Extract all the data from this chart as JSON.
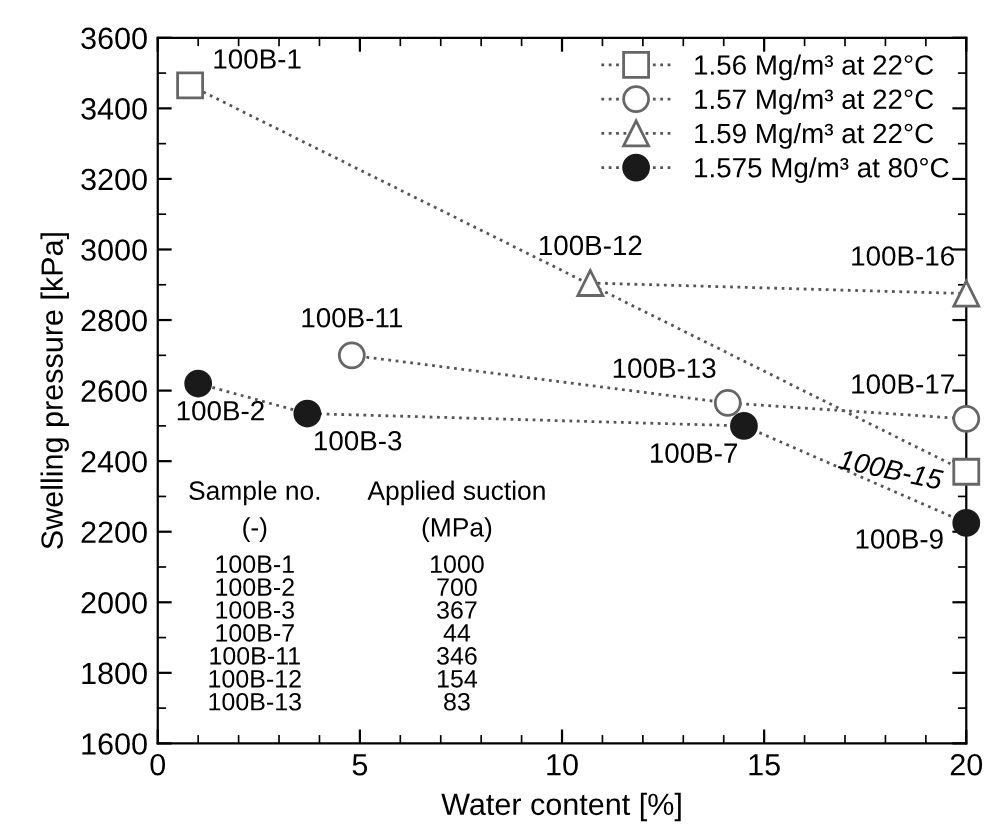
{
  "chart_data": {
    "type": "line",
    "xlabel": "Water content [%]",
    "ylabel": "Swelling pressure [kPa]",
    "xlim": [
      0,
      20
    ],
    "xticks": [
      0,
      5,
      10,
      15,
      20
    ],
    "ylim": [
      1600,
      3600
    ],
    "yticks": [
      1600,
      1800,
      2000,
      2200,
      2400,
      2600,
      2800,
      3000,
      3200,
      3400,
      3600
    ],
    "grid": false,
    "legend": "top right",
    "line_style": "dotted",
    "series": [
      {
        "name": "1.56 Mg/m³ at 22°C",
        "color": "#666666",
        "marker": "square",
        "x": [
          0.8,
          20
        ],
        "values": [
          3465,
          2370
        ]
      },
      {
        "name": "1.57 Mg/m³ at 22°C",
        "color": "#666666",
        "marker": "circle",
        "x": [
          4.8,
          14.1,
          20
        ],
        "values": [
          2700,
          2565,
          2520
        ]
      },
      {
        "name": "1.59 Mg/m³ at 22°C",
        "color": "#666666",
        "marker": "triangle",
        "x": [
          10.7,
          20
        ],
        "values": [
          2905,
          2875
        ]
      },
      {
        "name": "1.575 Mg/m³ at 80°C",
        "color": "#1a1a1a",
        "marker": "circle",
        "x": [
          1.0,
          3.7,
          14.5,
          20
        ],
        "values": [
          2620,
          2535,
          2500,
          2225
        ]
      }
    ],
    "annotations": [
      {
        "text": "100B-1",
        "x": 0.8,
        "y": 3465
      },
      {
        "text": "100B-12",
        "x": 10.7,
        "y": 2905
      },
      {
        "text": "100B-16",
        "x": 20,
        "y": 2875
      },
      {
        "text": "100B-11",
        "x": 4.8,
        "y": 2700
      },
      {
        "text": "100B-13",
        "x": 14.1,
        "y": 2565
      },
      {
        "text": "100B-17",
        "x": 20,
        "y": 2520
      },
      {
        "text": "100B-2",
        "x": 1.0,
        "y": 2620
      },
      {
        "text": "100B-3",
        "x": 3.7,
        "y": 2535
      },
      {
        "text": "100B-7",
        "x": 14.5,
        "y": 2500
      },
      {
        "text": "100B-15",
        "x": 20,
        "y": 2370
      },
      {
        "text": "100B-9",
        "x": 20,
        "y": 2225
      },
      "Sample no.",
      "Applied suction",
      "(-)",
      "(MPa)",
      "100B-1",
      "1000",
      "100B-2",
      "700",
      "100B-3",
      "367",
      "100B-7",
      "44",
      "100B-11",
      "346",
      "100B-12",
      "154",
      "100B-13",
      "83"
    ]
  }
}
